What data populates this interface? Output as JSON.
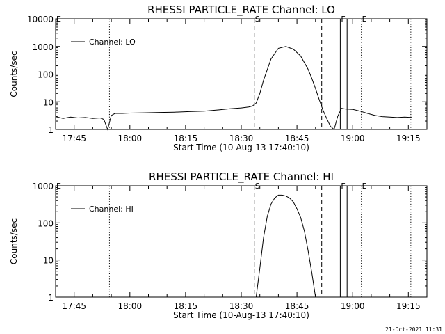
{
  "chart_data": [
    {
      "type": "line",
      "title": "RHESSI PARTICLE_RATE Channel: LO",
      "xlabel": "Start Time (10-Aug-13 17:40:10)",
      "ylabel": "Counts/sec",
      "y_scale": "log",
      "xlim": [
        "17:40",
        "19:20"
      ],
      "ylim": [
        1,
        10000
      ],
      "x_tick_labels": [
        "17:45",
        "18:00",
        "18:15",
        "18:30",
        "18:45",
        "19:00",
        "19:15"
      ],
      "y_tick_labels": [
        "1",
        "10",
        "100",
        "1000",
        "10000"
      ],
      "legend": {
        "position": "top-left",
        "entries": [
          "Channel: LO"
        ]
      },
      "series": [
        {
          "name": "Channel: LO",
          "x": [
            "17:40",
            "17:42",
            "17:44",
            "17:46",
            "17:48",
            "17:50",
            "17:52",
            "17:53",
            "17:54",
            "17:55",
            "17:56",
            "17:58",
            "18:00",
            "18:04",
            "18:08",
            "18:12",
            "18:16",
            "18:20",
            "18:24",
            "18:27",
            "18:30",
            "18:32",
            "18:33",
            "18:34",
            "18:35",
            "18:36",
            "18:38",
            "18:40",
            "18:42",
            "18:44",
            "18:46",
            "18:48",
            "18:49",
            "18:50",
            "18:51",
            "18:52",
            "18:53",
            "18:54",
            "18:55",
            "18:56",
            "18:57",
            "18:58",
            "19:00",
            "19:02",
            "19:04",
            "19:06",
            "19:08",
            "19:10",
            "19:12",
            "19:14",
            "19:16"
          ],
          "y": [
            2.9,
            2.5,
            2.8,
            2.6,
            2.7,
            2.5,
            2.6,
            2.3,
            1.0,
            3.2,
            3.8,
            3.8,
            3.9,
            4.0,
            4.1,
            4.2,
            4.4,
            4.6,
            5.1,
            5.6,
            6.0,
            6.5,
            7.0,
            9.0,
            20,
            60,
            350,
            860,
            1000,
            800,
            450,
            150,
            70,
            30,
            12,
            5,
            2.5,
            1.3,
            1.0,
            3.0,
            5.8,
            5.5,
            5.3,
            4.6,
            3.8,
            3.2,
            2.9,
            2.8,
            2.7,
            2.8,
            2.7
          ]
        }
      ],
      "markers": [
        {
          "label": "E",
          "x": "17:40",
          "style": "none"
        },
        {
          "label": "",
          "x": "17:54:30",
          "style": "dotted"
        },
        {
          "label": "S",
          "x": "18:33:30",
          "style": "dashed"
        },
        {
          "label": "",
          "x": "18:51:40",
          "style": "dashed"
        },
        {
          "label": "F",
          "x": "18:56:40",
          "style": "solid"
        },
        {
          "label": "",
          "x": "18:58:30",
          "style": "solid"
        },
        {
          "label": "E",
          "x": "19:02:20",
          "style": "dotted"
        },
        {
          "label": "",
          "x": "19:15:40",
          "style": "dotted"
        }
      ]
    },
    {
      "type": "line",
      "title": "RHESSI PARTICLE_RATE Channel: HI",
      "xlabel": "Start Time (10-Aug-13 17:40:10)",
      "ylabel": "Counts/sec",
      "y_scale": "log",
      "xlim": [
        "17:40",
        "19:20"
      ],
      "ylim": [
        1,
        1000
      ],
      "x_tick_labels": [
        "17:45",
        "18:00",
        "18:15",
        "18:30",
        "18:45",
        "19:00",
        "19:15"
      ],
      "y_tick_labels": [
        "1",
        "10",
        "100",
        "1000"
      ],
      "legend": {
        "position": "top-left",
        "entries": [
          "Channel: HI"
        ]
      },
      "series": [
        {
          "name": "Channel: HI",
          "x": [
            "18:34",
            "18:35",
            "18:36",
            "18:37",
            "18:38",
            "18:39",
            "18:40",
            "18:41",
            "18:42",
            "18:43",
            "18:44",
            "18:45",
            "18:46",
            "18:47",
            "18:48",
            "18:49",
            "18:50"
          ],
          "y": [
            1.0,
            6,
            40,
            150,
            320,
            470,
            560,
            560,
            530,
            470,
            370,
            240,
            140,
            60,
            18,
            4.5,
            1.0
          ]
        }
      ],
      "markers": [
        {
          "label": "E",
          "x": "17:40",
          "style": "none"
        },
        {
          "label": "",
          "x": "17:54:30",
          "style": "dotted"
        },
        {
          "label": "S",
          "x": "18:33:30",
          "style": "dashed"
        },
        {
          "label": "",
          "x": "18:51:40",
          "style": "dashed"
        },
        {
          "label": "F",
          "x": "18:56:40",
          "style": "solid"
        },
        {
          "label": "",
          "x": "18:58:30",
          "style": "solid"
        },
        {
          "label": "E",
          "x": "19:02:20",
          "style": "dotted"
        },
        {
          "label": "",
          "x": "19:15:40",
          "style": "dotted"
        }
      ]
    }
  ],
  "timestamp": "21-Oct-2021 11:31"
}
